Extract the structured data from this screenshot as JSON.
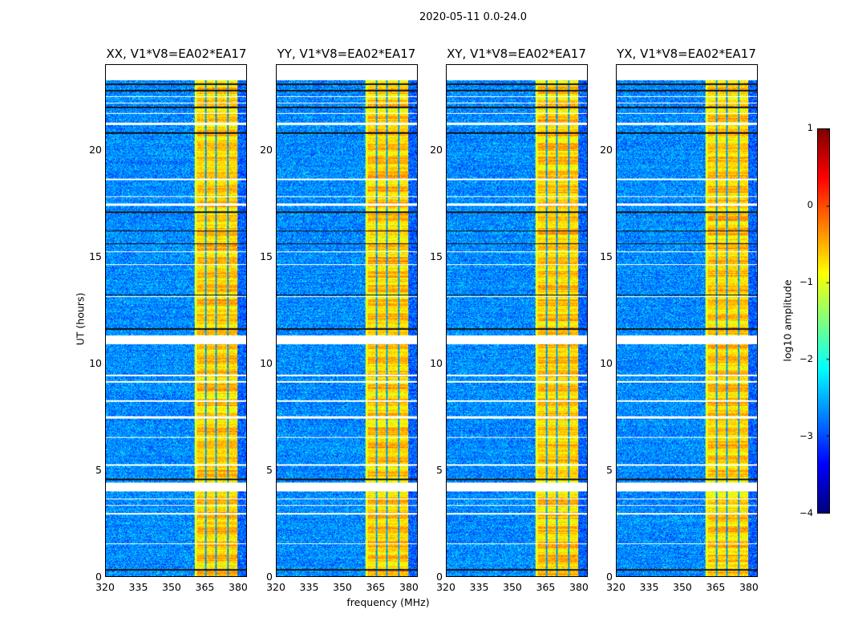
{
  "figure": {
    "suptitle": "2020-05-11 0.0-24.0",
    "xlabel": "frequency (MHz)",
    "ylabel": "UT (hours)"
  },
  "chart_data": [
    {
      "type": "heatmap",
      "title": "XX, V1*V8=EA02*EA17",
      "xlim": [
        320,
        384
      ],
      "ylim": [
        0,
        24
      ],
      "band": [
        360.5,
        380
      ],
      "seed": 11
    },
    {
      "type": "heatmap",
      "title": "YY, V1*V8=EA02*EA17",
      "xlim": [
        320,
        384
      ],
      "ylim": [
        0,
        24
      ],
      "band": [
        360.5,
        380
      ],
      "seed": 23
    },
    {
      "type": "heatmap",
      "title": "XY, V1*V8=EA02*EA17",
      "xlim": [
        320,
        384
      ],
      "ylim": [
        0,
        24
      ],
      "band": [
        360.5,
        380
      ],
      "seed": 37
    },
    {
      "type": "heatmap",
      "title": "YX, V1*V8=EA02*EA17",
      "xlim": [
        320,
        384
      ],
      "ylim": [
        0,
        24
      ],
      "band": [
        360.5,
        380
      ],
      "seed": 53
    }
  ],
  "axes": {
    "xticks": [
      "320",
      "335",
      "350",
      "365",
      "380"
    ],
    "xtick_values": [
      320,
      335,
      350,
      365,
      380
    ],
    "yticks": [
      "0",
      "5",
      "10",
      "15",
      "20"
    ],
    "ytick_values": [
      0,
      5,
      10,
      15,
      20
    ],
    "background_level": -2.7,
    "band_level": -0.6,
    "band_gaps_mhz": [
      365.5,
      370.3,
      375.6
    ],
    "flagged_hours_white": [
      [
        23.3,
        24
      ],
      [
        10.9,
        11.3
      ],
      [
        4.0,
        4.4
      ],
      [
        1.5,
        1.55
      ],
      [
        9.4,
        9.45
      ],
      [
        9.1,
        9.15
      ],
      [
        8.2,
        8.25
      ],
      [
        7.4,
        7.5
      ],
      [
        6.5,
        6.55
      ],
      [
        5.2,
        5.25
      ],
      [
        3.6,
        3.65
      ],
      [
        3.3,
        3.35
      ],
      [
        2.9,
        2.95
      ],
      [
        13.1,
        13.15
      ],
      [
        14.6,
        14.65
      ],
      [
        15.2,
        15.25
      ],
      [
        17.4,
        17.5
      ],
      [
        17.8,
        17.85
      ],
      [
        18.6,
        18.65
      ],
      [
        21.2,
        21.3
      ],
      [
        21.7,
        21.75
      ],
      [
        22.2,
        22.25
      ],
      [
        22.5,
        22.55
      ]
    ],
    "dark_hours": [
      0.3,
      4.55,
      11.6,
      13.2,
      15.6,
      16.2,
      17.1,
      20.8,
      22.0,
      22.8,
      23.1
    ]
  },
  "colorbar": {
    "label": "log10 amplitude",
    "range": [
      -4,
      1
    ],
    "ticks": [
      "1",
      "0",
      "−1",
      "−2",
      "−3",
      "−4"
    ],
    "tick_values": [
      1,
      0,
      -1,
      -2,
      -3,
      -4
    ],
    "colormap": "jet"
  }
}
